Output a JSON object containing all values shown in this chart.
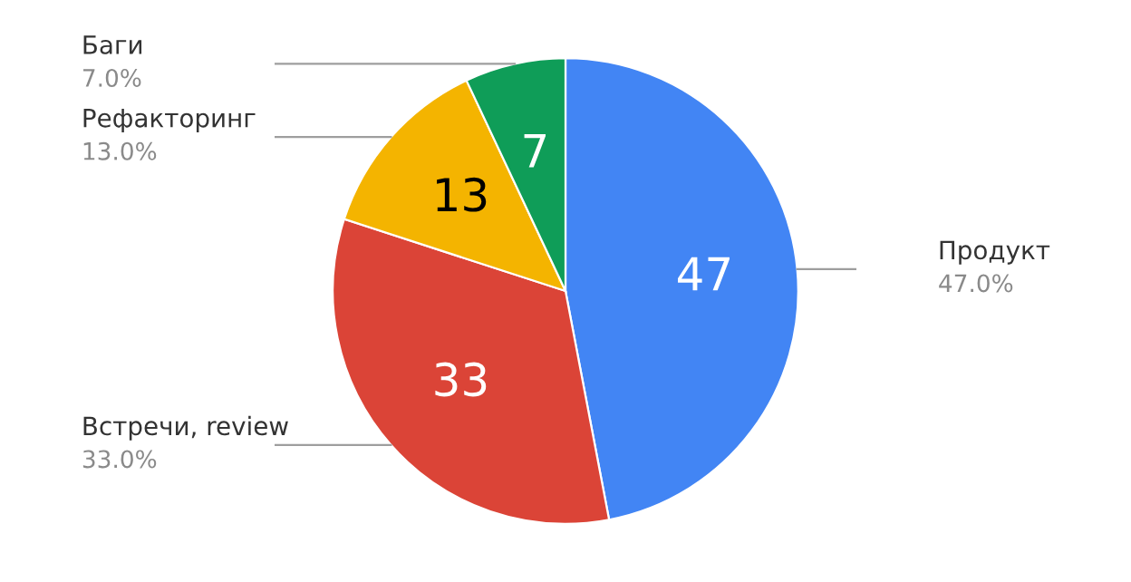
{
  "chart_data": {
    "type": "pie",
    "categories": [
      "Продукт",
      "Встречи, review",
      "Рефакторинг",
      "Баги"
    ],
    "values": [
      47,
      33,
      13,
      7
    ],
    "colors": [
      "#4285f4",
      "#db4437",
      "#f4b400",
      "#0f9d58"
    ],
    "value_labels": [
      "47",
      "33",
      "13",
      "7"
    ],
    "annotations": [
      "47.0%",
      "33.0%",
      "13.0%",
      "7.0%"
    ],
    "legend": false
  }
}
